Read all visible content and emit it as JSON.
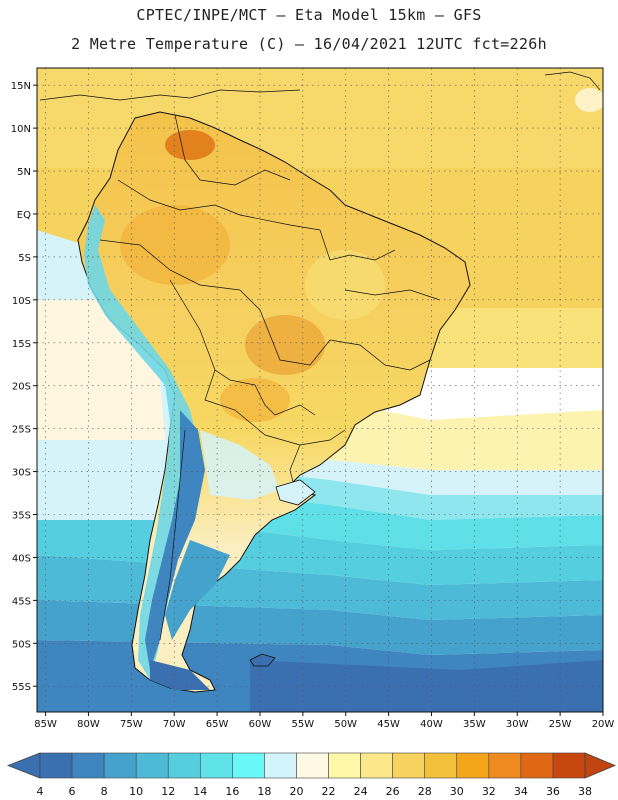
{
  "header": {
    "line1": "CPTEC/INPE/MCT –  Eta Model 15km – GFS",
    "line2": "2 Metre Temperature (C) – 16/04/2021 12UTC fct=226h"
  },
  "map": {
    "lon_range": [
      -86,
      -20
    ],
    "lat_range": [
      -58,
      17
    ],
    "x_ticks": [
      {
        "lon": -85,
        "label": "85W"
      },
      {
        "lon": -80,
        "label": "80W"
      },
      {
        "lon": -75,
        "label": "75W"
      },
      {
        "lon": -70,
        "label": "70W"
      },
      {
        "lon": -65,
        "label": "65W"
      },
      {
        "lon": -60,
        "label": "60W"
      },
      {
        "lon": -55,
        "label": "55W"
      },
      {
        "lon": -50,
        "label": "50W"
      },
      {
        "lon": -45,
        "label": "45W"
      },
      {
        "lon": -40,
        "label": "40W"
      },
      {
        "lon": -35,
        "label": "35W"
      },
      {
        "lon": -30,
        "label": "30W"
      },
      {
        "lon": -25,
        "label": "25W"
      },
      {
        "lon": -20,
        "label": "20W"
      }
    ],
    "y_ticks": [
      {
        "lat": 15,
        "label": "15N"
      },
      {
        "lat": 10,
        "label": "10N"
      },
      {
        "lat": 5,
        "label": "5N"
      },
      {
        "lat": 0,
        "label": "EQ"
      },
      {
        "lat": -5,
        "label": "5S"
      },
      {
        "lat": -10,
        "label": "10S"
      },
      {
        "lat": -15,
        "label": "15S"
      },
      {
        "lat": -20,
        "label": "20S"
      },
      {
        "lat": -25,
        "label": "25S"
      },
      {
        "lat": -30,
        "label": "30S"
      },
      {
        "lat": -35,
        "label": "35S"
      },
      {
        "lat": -40,
        "label": "40S"
      },
      {
        "lat": -45,
        "label": "45S"
      },
      {
        "lat": -50,
        "label": "50S"
      },
      {
        "lat": -55,
        "label": "55S"
      }
    ]
  },
  "colorbar": {
    "labels": [
      "4",
      "6",
      "8",
      "10",
      "12",
      "14",
      "16",
      "18",
      "20",
      "22",
      "24",
      "26",
      "28",
      "30",
      "32",
      "34",
      "36",
      "38"
    ],
    "colors": [
      "#3a6fb0",
      "#3f86c0",
      "#45a2cd",
      "#4dbad8",
      "#55cfe0",
      "#5fe2e8",
      "#6af7f7",
      "#d2f4fa",
      "#fff8e3",
      "#fff8a8",
      "#fce88a",
      "#f6d25e",
      "#f2c03a",
      "#f5a51a",
      "#ee8a1f",
      "#e06815",
      "#c8470e"
    ],
    "under_color": "#3a6fb0",
    "over_color": "#c04410"
  }
}
